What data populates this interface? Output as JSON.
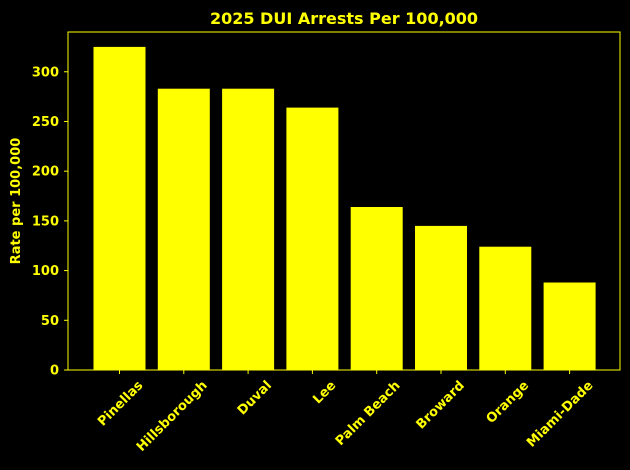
{
  "colors": {
    "background": "#000000",
    "accent": "#ffff00"
  },
  "chart_data": {
    "type": "bar",
    "title": "2025 DUI Arrests Per 100,000",
    "xlabel": "",
    "ylabel": "Rate per 100,000",
    "categories": [
      "Pinellas",
      "Hillsborough",
      "Duval",
      "Lee",
      "Palm Beach",
      "Broward",
      "Orange",
      "Miami-Dade"
    ],
    "values": [
      325,
      283,
      283,
      264,
      164,
      145,
      124,
      88
    ],
    "ylim": [
      0,
      340
    ],
    "yticks": [
      0,
      50,
      100,
      150,
      200,
      250,
      300
    ],
    "grid": false,
    "legend": "none"
  }
}
